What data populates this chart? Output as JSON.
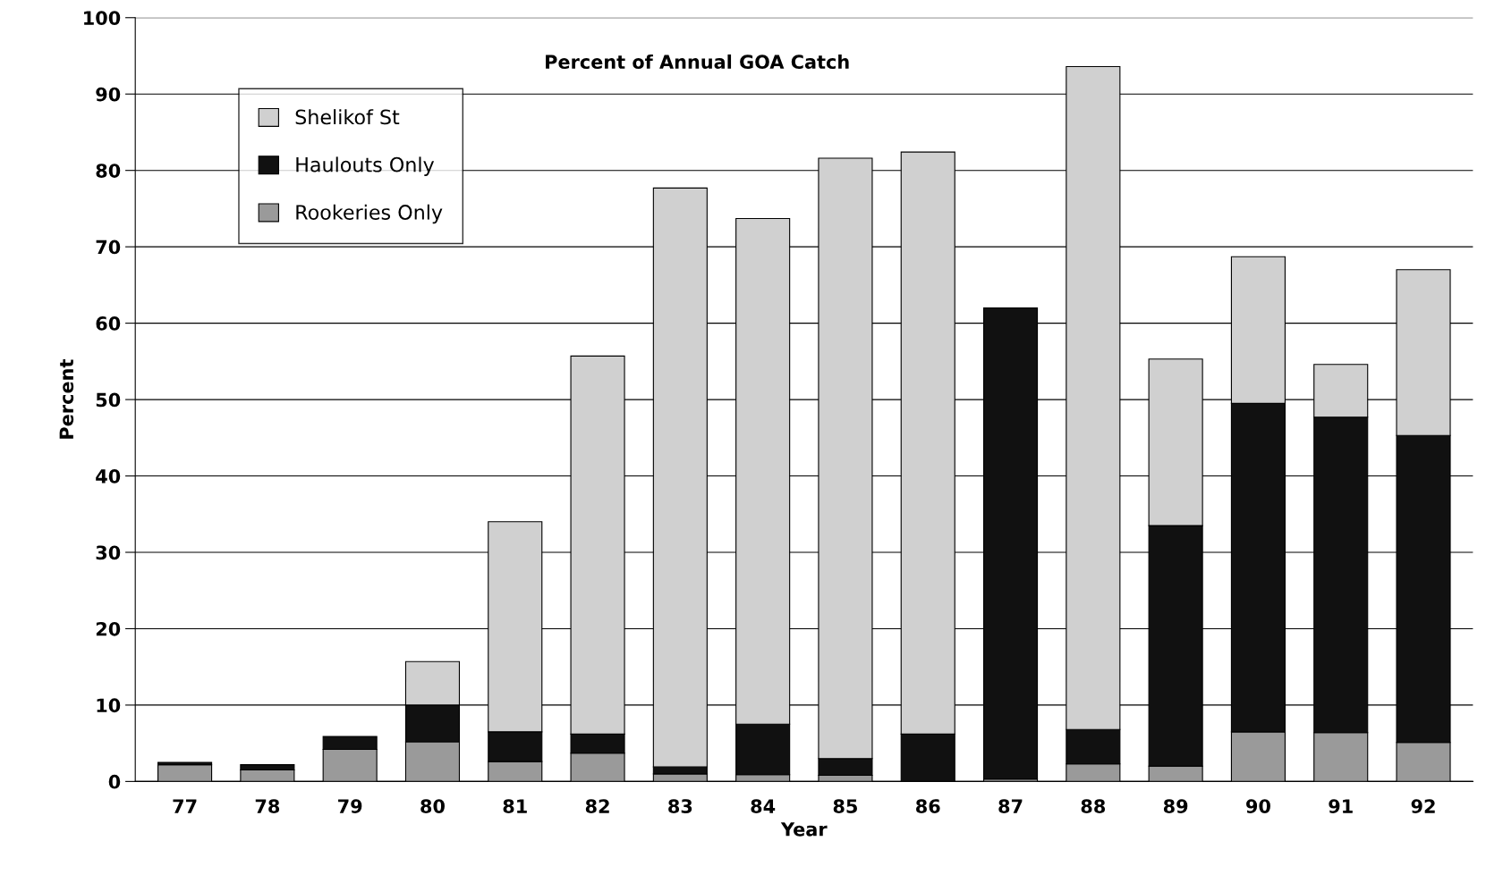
{
  "chart_data": {
    "type": "bar",
    "title": "Percent of Annual GOA Catch",
    "xlabel": "Year",
    "ylabel": "Percent",
    "categories": [
      "77",
      "78",
      "79",
      "80",
      "81",
      "82",
      "83",
      "84",
      "85",
      "86",
      "87",
      "88",
      "89",
      "90",
      "91",
      "92"
    ],
    "stacked": true,
    "series": [
      {
        "name": "Rookeries Only",
        "color": "#9a9a9a",
        "values": [
          2.2,
          1.5,
          4.2,
          5.2,
          2.6,
          3.7,
          1.0,
          0.9,
          0.8,
          0,
          0.3,
          2.3,
          2.0,
          6.5,
          6.4,
          5.1
        ]
      },
      {
        "name": "Haulouts Only",
        "color": "#111111",
        "values": [
          0.3,
          0.7,
          1.7,
          4.8,
          3.9,
          2.5,
          0.9,
          6.6,
          2.2,
          6.2,
          61.7,
          4.5,
          31.5,
          43.0,
          41.3,
          40.2
        ]
      },
      {
        "name": "Shelikof St",
        "color": "#d0d0d0",
        "values": [
          null,
          null,
          null,
          5.7,
          27.5,
          49.5,
          75.8,
          66.2,
          78.6,
          76.2,
          null,
          86.8,
          21.8,
          19.2,
          6.9,
          21.7
        ]
      }
    ],
    "ylim": [
      0,
      100
    ],
    "yticks": [
      0,
      10,
      20,
      30,
      40,
      50,
      60,
      70,
      80,
      90,
      100
    ],
    "grid": "y",
    "legend": "top left"
  }
}
